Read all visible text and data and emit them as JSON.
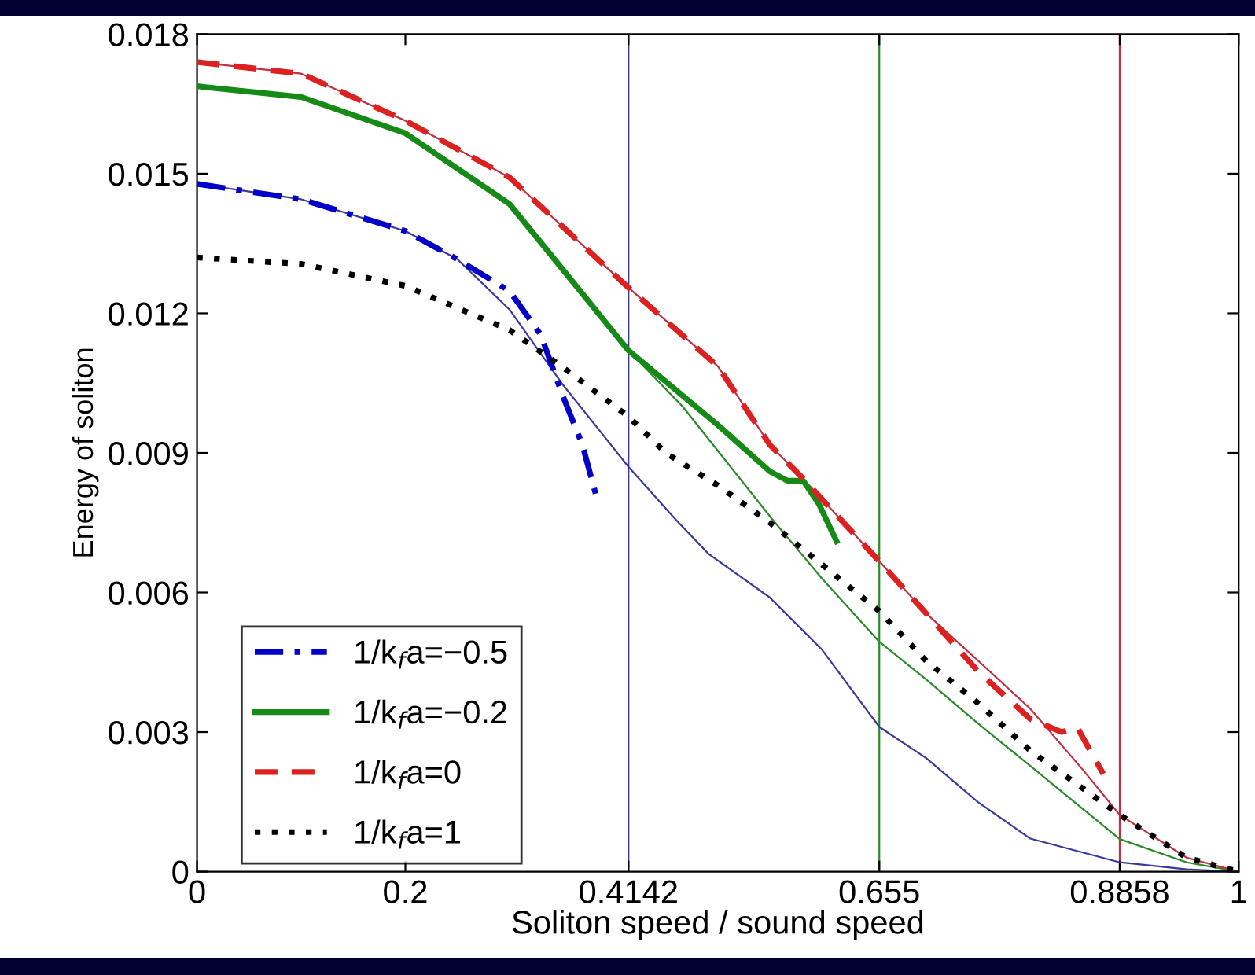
{
  "chart_data": {
    "type": "line",
    "xlabel": "Soliton speed / sound speed",
    "ylabel": "Energy of soliton",
    "xlim": [
      0,
      1
    ],
    "ylim": [
      0,
      0.018
    ],
    "xticks": [
      0,
      0.2,
      0.4142,
      0.655,
      0.8858,
      1
    ],
    "yticks": [
      0,
      0.003,
      0.006,
      0.009,
      0.012,
      0.015,
      0.018
    ],
    "grid": false,
    "legend": "lower left",
    "marker": "none",
    "ref_lines": [
      {
        "axis": "x",
        "value": 0.4142,
        "color": "#3a3a9a"
      },
      {
        "axis": "x",
        "value": 0.655,
        "color": "#2a8a2a"
      },
      {
        "axis": "x",
        "value": 0.8858,
        "color": "#c03040"
      }
    ],
    "series": [
      {
        "color": "#3a3a9a",
        "line_style": "solid",
        "x": [
          0,
          0.1,
          0.2,
          0.25,
          0.3,
          0.35,
          0.4142,
          0.459,
          0.491,
          0.55,
          0.6,
          0.655,
          0.7,
          0.75,
          0.8,
          0.8858,
          0.95,
          1
        ],
        "values": [
          0.01478,
          0.01445,
          0.01377,
          0.01316,
          0.01208,
          0.0105,
          0.0087,
          0.00758,
          0.00683,
          0.00589,
          0.00477,
          0.00311,
          0.00244,
          0.00149,
          0.00071,
          0.0002,
          5e-05,
          0
        ]
      },
      {
        "color": "#2a8a2a",
        "line_style": "solid",
        "x": [
          0,
          0.1,
          0.2,
          0.3,
          0.4142,
          0.466,
          0.552,
          0.6,
          0.655,
          0.7,
          0.75,
          0.8,
          0.8858,
          0.95,
          1
        ],
        "values": [
          0.01688,
          0.01665,
          0.01587,
          0.01435,
          0.0112,
          0.01,
          0.00758,
          0.0063,
          0.00494,
          0.00413,
          0.00318,
          0.00227,
          0.0007,
          0.0002,
          0
        ]
      },
      {
        "color": "#c03040",
        "line_style": "solid",
        "x": [
          0,
          0.1,
          0.2,
          0.3,
          0.4142,
          0.5,
          0.55,
          0.58,
          0.655,
          0.7,
          0.75,
          0.8,
          0.85,
          0.8858,
          0.95,
          1
        ],
        "values": [
          0.0174,
          0.01715,
          0.01614,
          0.01492,
          0.01255,
          0.01086,
          0.00917,
          0.00849,
          0.00667,
          0.00555,
          0.00453,
          0.0035,
          0.0022,
          0.00122,
          0.0003,
          0
        ]
      },
      {
        "name": "1/k$_{f}$a=−0.5",
        "color": "#0000c8",
        "line_style": "dashdot",
        "x": [
          0,
          0.1,
          0.2,
          0.25,
          0.3,
          0.33,
          0.35,
          0.37,
          0.383
        ],
        "values": [
          0.01478,
          0.01445,
          0.01377,
          0.01316,
          0.01248,
          0.01154,
          0.01029,
          0.00917,
          0.00809
        ]
      },
      {
        "name": "1/k$_{f}$a=−0.2",
        "color": "#168a16",
        "line_style": "solid",
        "x": [
          0,
          0.1,
          0.2,
          0.3,
          0.4142,
          0.5,
          0.55,
          0.567,
          0.582,
          0.597,
          0.614
        ],
        "values": [
          0.01688,
          0.01665,
          0.01587,
          0.01435,
          0.0112,
          0.0096,
          0.0086,
          0.0084,
          0.0084,
          0.0079,
          0.0071
        ]
      },
      {
        "name": "1/k$_{f}$a=0",
        "color": "#dd2020",
        "line_style": "dashed",
        "x": [
          0,
          0.1,
          0.2,
          0.3,
          0.4142,
          0.5,
          0.55,
          0.58,
          0.655,
          0.7,
          0.75,
          0.8,
          0.83,
          0.845,
          0.87
        ],
        "values": [
          0.0174,
          0.01715,
          0.01614,
          0.01492,
          0.01255,
          0.01086,
          0.00917,
          0.00849,
          0.00667,
          0.00555,
          0.0043,
          0.00328,
          0.003,
          0.0031,
          0.0021
        ]
      },
      {
        "name": "1/k$_{f}$a=1",
        "color": "#000000",
        "line_style": "dotted",
        "x": [
          0,
          0.1,
          0.2,
          0.3,
          0.35,
          0.4142,
          0.45,
          0.5,
          0.55,
          0.6,
          0.655,
          0.7,
          0.75,
          0.8,
          0.8858,
          0.95,
          1
        ],
        "values": [
          0.0132,
          0.01306,
          0.01259,
          0.01164,
          0.01086,
          0.00978,
          0.009,
          0.0083,
          0.0075,
          0.0066,
          0.0056,
          0.00453,
          0.00362,
          0.0026,
          0.00122,
          0.0003,
          0
        ]
      }
    ]
  }
}
